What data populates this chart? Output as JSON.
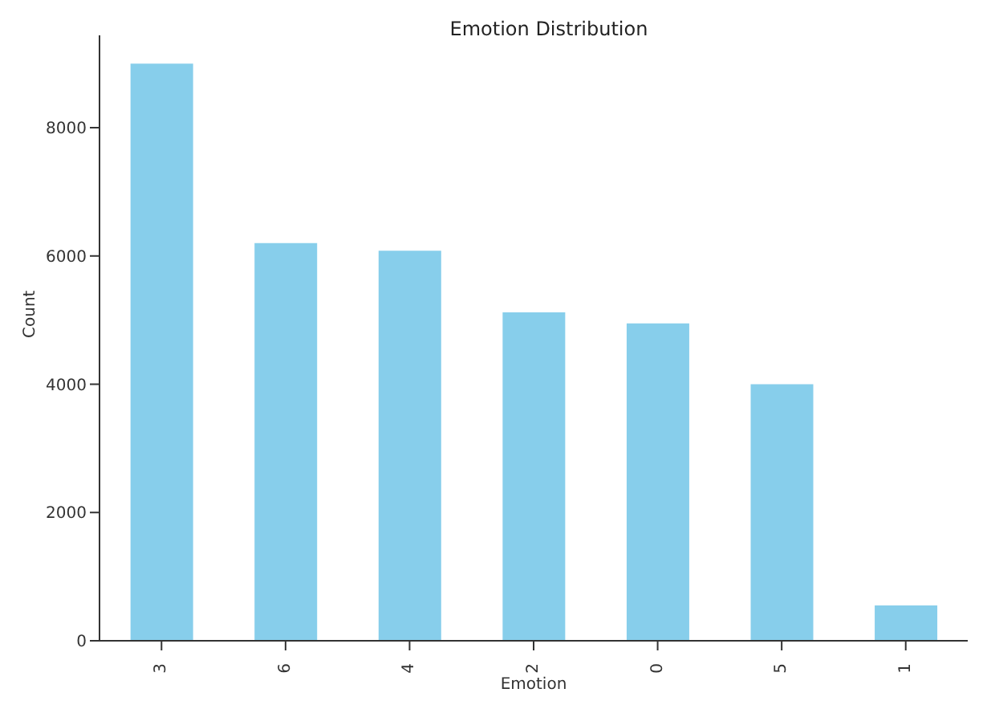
{
  "chart_data": {
    "type": "bar",
    "title": "Emotion Distribution",
    "xlabel": "Emotion",
    "ylabel": "Count",
    "categories": [
      "3",
      "6",
      "4",
      "2",
      "0",
      "5",
      "1"
    ],
    "values": [
      9000,
      6200,
      6080,
      5120,
      4950,
      4000,
      550
    ],
    "color": "#87ceeb",
    "ylim": [
      0,
      9440
    ],
    "yticks": [
      0,
      2000,
      4000,
      6000,
      8000
    ],
    "grid": false,
    "legend": false
  }
}
